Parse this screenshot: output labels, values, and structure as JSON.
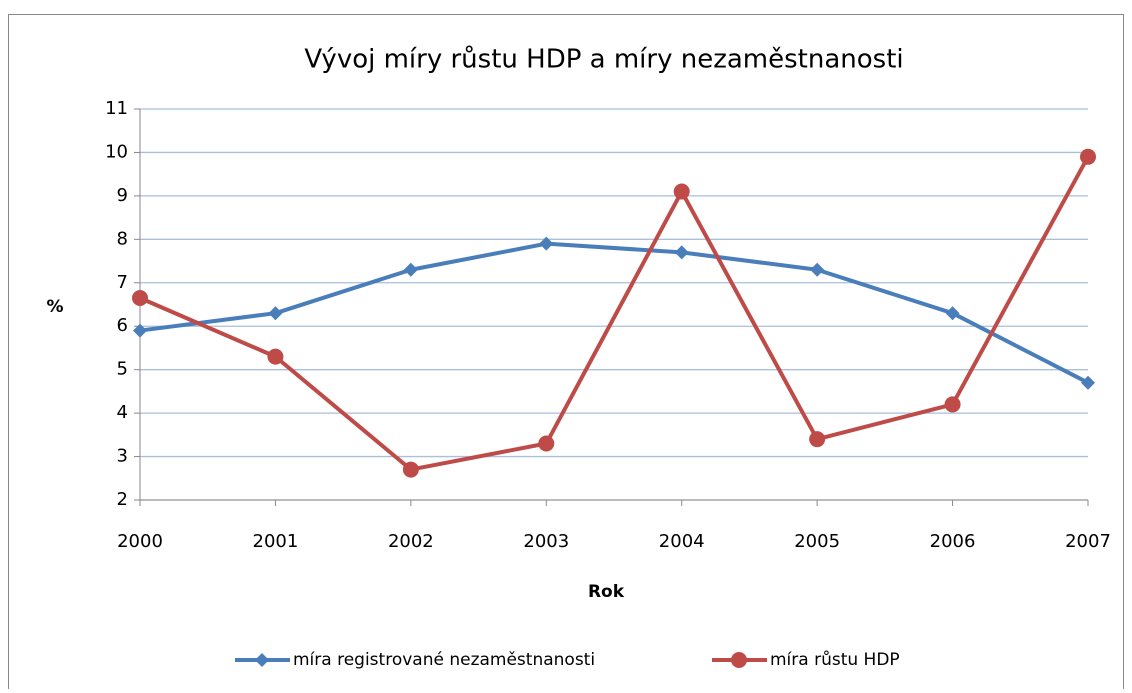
{
  "chart_data": {
    "type": "line",
    "title": "Vývoj míry růstu HDP a míry nezaměstnanosti",
    "x_label": "Rok",
    "y_label": "%",
    "categories": [
      "2000",
      "2001",
      "2002",
      "2003",
      "2004",
      "2005",
      "2006",
      "2007"
    ],
    "series": [
      {
        "name": "míra registrované nezaměstnanosti",
        "color": "#4a7ebb",
        "marker": "diamond",
        "values": [
          5.9,
          6.3,
          7.3,
          7.9,
          7.7,
          7.3,
          6.3,
          4.7
        ]
      },
      {
        "name": "míra růstu HDP",
        "color": "#be4b48",
        "marker": "circle",
        "values": [
          6.65,
          5.3,
          2.7,
          3.3,
          9.1,
          3.4,
          4.2,
          9.9
        ]
      }
    ],
    "ylim": [
      2,
      11
    ],
    "yticks": [
      2,
      3,
      4,
      5,
      6,
      7,
      8,
      9,
      10,
      11
    ],
    "grid": true,
    "legend": "bottom"
  }
}
